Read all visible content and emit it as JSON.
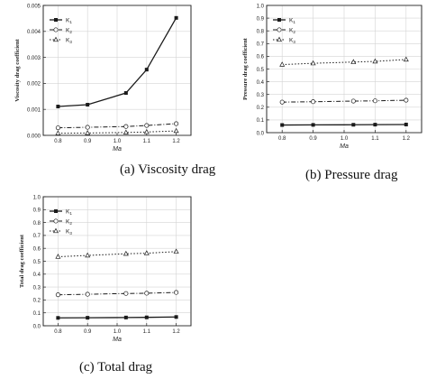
{
  "chart_data": [
    {
      "type": "line",
      "caption": "(a) Viscosity drag",
      "xlabel": "Ma",
      "ylabel": "Viscosity drag coefficient",
      "x": [
        0.8,
        0.9,
        1.03,
        1.1,
        1.2
      ],
      "xticks": [
        "0.8",
        "0.9",
        "1.0",
        "1.1",
        "1.2"
      ],
      "xlim": [
        0.75,
        1.25
      ],
      "ylim": [
        0.0,
        0.005
      ],
      "yticks": [
        "0.000",
        "0.001",
        "0.002",
        "0.003",
        "0.004",
        "0.005"
      ],
      "legend_position": "top-left",
      "series": [
        {
          "name": "K",
          "sub": "1",
          "values": [
            0.00111,
            0.00118,
            0.00163,
            0.00253,
            0.00452
          ],
          "style": "solid",
          "marker": "square-filled"
        },
        {
          "name": "K",
          "sub": "2",
          "values": [
            0.00029,
            0.00031,
            0.00034,
            0.00038,
            0.00045
          ],
          "style": "dashdot",
          "marker": "circle-open"
        },
        {
          "name": "K",
          "sub": "3",
          "values": [
            8e-05,
            9e-05,
            0.00011,
            0.00013,
            0.00017
          ],
          "style": "dotted",
          "marker": "triangle-open"
        }
      ]
    },
    {
      "type": "line",
      "caption": "(b) Pressure drag",
      "xlabel": "Ma",
      "ylabel": "Pressure drag coefficient",
      "x": [
        0.8,
        0.9,
        1.03,
        1.1,
        1.2
      ],
      "xticks": [
        "0.8",
        "0.9",
        "1.0",
        "1.1",
        "1.2"
      ],
      "xlim": [
        0.75,
        1.25
      ],
      "ylim": [
        0.0,
        1.0
      ],
      "yticks": [
        "0.0",
        "0.1",
        "0.2",
        "0.3",
        "0.4",
        "0.5",
        "0.6",
        "0.7",
        "0.8",
        "0.9",
        "1.0"
      ],
      "legend_position": "top-left",
      "series": [
        {
          "name": "K",
          "sub": "1",
          "values": [
            0.06,
            0.061,
            0.062,
            0.063,
            0.064
          ],
          "style": "solid",
          "marker": "square-filled"
        },
        {
          "name": "K",
          "sub": "2",
          "values": [
            0.24,
            0.243,
            0.248,
            0.25,
            0.255
          ],
          "style": "dashdot",
          "marker": "circle-open"
        },
        {
          "name": "K",
          "sub": "3",
          "values": [
            0.535,
            0.545,
            0.555,
            0.56,
            0.575
          ],
          "style": "dotted",
          "marker": "triangle-open"
        }
      ]
    },
    {
      "type": "line",
      "caption": "(c) Total drag",
      "xlabel": "Ma",
      "ylabel": "Total drag coefficient",
      "x": [
        0.8,
        0.9,
        1.03,
        1.1,
        1.2
      ],
      "xticks": [
        "0.8",
        "0.9",
        "1.0",
        "1.1",
        "1.2"
      ],
      "xlim": [
        0.75,
        1.25
      ],
      "ylim": [
        0.0,
        1.0
      ],
      "yticks": [
        "0.0",
        "0.1",
        "0.2",
        "0.3",
        "0.4",
        "0.5",
        "0.6",
        "0.7",
        "0.8",
        "0.9",
        "1.0"
      ],
      "legend_position": "top-left",
      "series": [
        {
          "name": "K",
          "sub": "1",
          "values": [
            0.061,
            0.062,
            0.064,
            0.065,
            0.068
          ],
          "style": "solid",
          "marker": "square-filled"
        },
        {
          "name": "K",
          "sub": "2",
          "values": [
            0.24,
            0.244,
            0.25,
            0.252,
            0.258
          ],
          "style": "dashdot",
          "marker": "circle-open"
        },
        {
          "name": "K",
          "sub": "3",
          "values": [
            0.535,
            0.545,
            0.558,
            0.562,
            0.575
          ],
          "style": "dotted",
          "marker": "triangle-open"
        }
      ]
    }
  ]
}
